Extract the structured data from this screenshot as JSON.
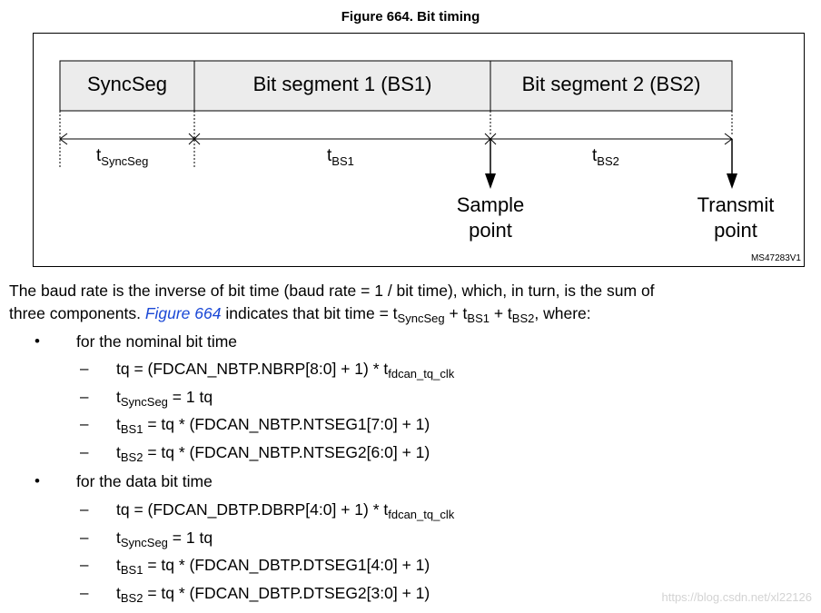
{
  "figure": {
    "title": "Figure 664. Bit timing",
    "segments": [
      "SyncSeg",
      "Bit segment 1 (BS1)",
      "Bit segment 2 (BS2)"
    ],
    "t_labels": [
      {
        "base": "t",
        "sub": "SyncSeg"
      },
      {
        "base": "t",
        "sub": "BS1"
      },
      {
        "base": "t",
        "sub": "BS2"
      }
    ],
    "sample_point": [
      "Sample",
      "point"
    ],
    "transmit_point": [
      "Transmit",
      "point"
    ],
    "code": "MS47283V1"
  },
  "body": {
    "para1_line1": "The baud rate is the inverse of bit time (baud rate = 1 / bit time), which, in turn, is the sum of",
    "para1_line2_a": "three components. ",
    "para1_link": "Figure 664",
    "para1_line2_b": " indicates that bit time = t",
    "sub_syncseg": "SyncSeg",
    "plus1": " + t",
    "sub_bs1": "BS1",
    "plus2": " + t",
    "sub_bs2": "BS2",
    "where": ", where:",
    "bullet_nominal": "for the nominal bit time",
    "bullet_data": "for the data bit time",
    "nominal": {
      "tq_a": "tq = (FDCAN_NBTP.NBRP[8:0] + 1) * t",
      "tq_sub": "fdcan_tq_clk",
      "sync_t": "t",
      "sync_sub": "SyncSeg",
      "sync_rest": " = 1 tq",
      "bs1_t": "t",
      "bs1_sub": "BS1",
      "bs1_rest": " = tq * (FDCAN_NBTP.NTSEG1[7:0] + 1)",
      "bs2_t": "t",
      "bs2_sub": "BS2",
      "bs2_rest": " = tq * (FDCAN_NBTP.NTSEG2[6:0] + 1)"
    },
    "data": {
      "tq_a": "tq = (FDCAN_DBTP.DBRP[4:0] + 1) * t",
      "tq_sub": "fdcan_tq_clk",
      "sync_t": "t",
      "sync_sub": "SyncSeg",
      "sync_rest": " = 1 tq",
      "bs1_t": "t",
      "bs1_sub": "BS1",
      "bs1_rest": " = tq * (FDCAN_DBTP.DTSEG1[4:0] + 1)",
      "bs2_t": "t",
      "bs2_sub": "BS2",
      "bs2_rest": " = tq * (FDCAN_DBTP.DTSEG2[3:0] + 1)"
    },
    "bullet_glyph": "•",
    "dash_glyph": "–"
  },
  "watermark": "https://blog.csdn.net/xl22126"
}
